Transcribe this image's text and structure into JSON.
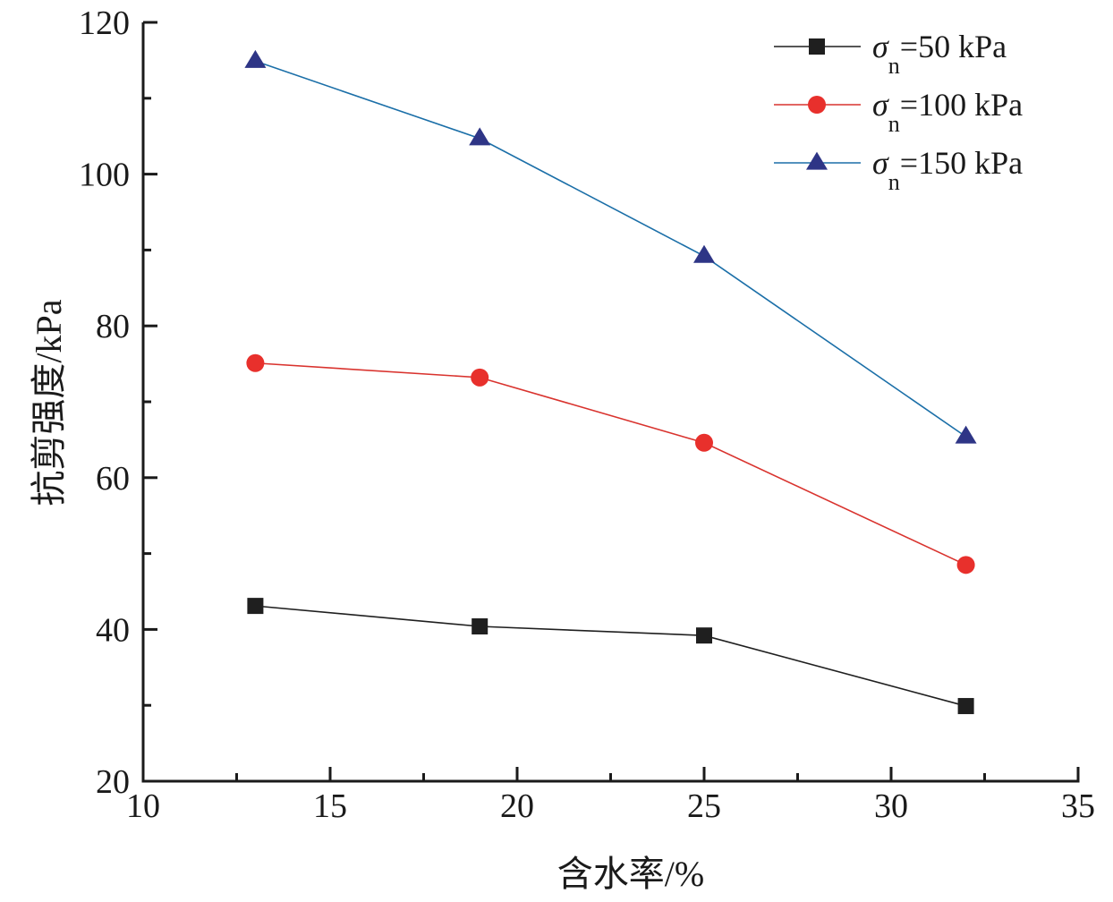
{
  "chart_data": {
    "type": "line",
    "title": "",
    "xlabel": "含水率/%",
    "ylabel": "抗剪强度/kPa",
    "xlim": [
      10,
      35
    ],
    "ylim": [
      20,
      120
    ],
    "x_ticks": [
      10,
      15,
      20,
      25,
      30,
      35
    ],
    "y_ticks": [
      20,
      40,
      60,
      80,
      100,
      120
    ],
    "x_minor_step": 2.5,
    "y_minor_step": 10,
    "grid": false,
    "legend_position": "top-right",
    "x": [
      13,
      19,
      25,
      32
    ],
    "series": [
      {
        "name": "σn=50 kPa",
        "symbol": "σ",
        "subscript": "n",
        "value_text": "=50 kPa",
        "marker": "square",
        "line_color": "#1f1f1f",
        "marker_color": "#1f1f1f",
        "values": [
          43.1,
          40.4,
          39.2,
          29.9
        ]
      },
      {
        "name": "σn=100 kPa",
        "symbol": "σ",
        "subscript": "n",
        "value_text": "=100 kPa",
        "marker": "circle",
        "line_color": "#d9332e",
        "marker_color": "#e8302c",
        "values": [
          75.1,
          73.2,
          64.6,
          48.5
        ]
      },
      {
        "name": "σn=150 kPa",
        "symbol": "σ",
        "subscript": "n",
        "value_text": "=150 kPa",
        "marker": "triangle",
        "line_color": "#1b6fa8",
        "marker_color": "#2e3586",
        "values": [
          114.9,
          104.7,
          89.2,
          65.4
        ]
      }
    ]
  }
}
